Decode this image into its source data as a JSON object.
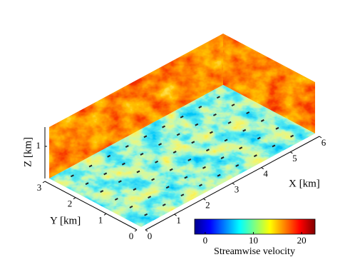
{
  "chart_data": {
    "type": "field3d",
    "x_label": "X  [km]",
    "y_label": "Y  [km]",
    "z_label": "Z  [km]",
    "xlim": [
      0,
      6
    ],
    "xticks": [
      0,
      1,
      2,
      3,
      4,
      5,
      6
    ],
    "ylim": [
      0,
      3
    ],
    "yticks": [
      0,
      1,
      2,
      3
    ],
    "zlim": [
      0,
      1.6
    ],
    "zticks": [
      1
    ],
    "colorbar": {
      "label": "Streamwise velocity",
      "colormap": "jet",
      "clim": [
        -2.2,
        22.8
      ],
      "ticks": [
        0,
        10,
        20
      ]
    }
  }
}
